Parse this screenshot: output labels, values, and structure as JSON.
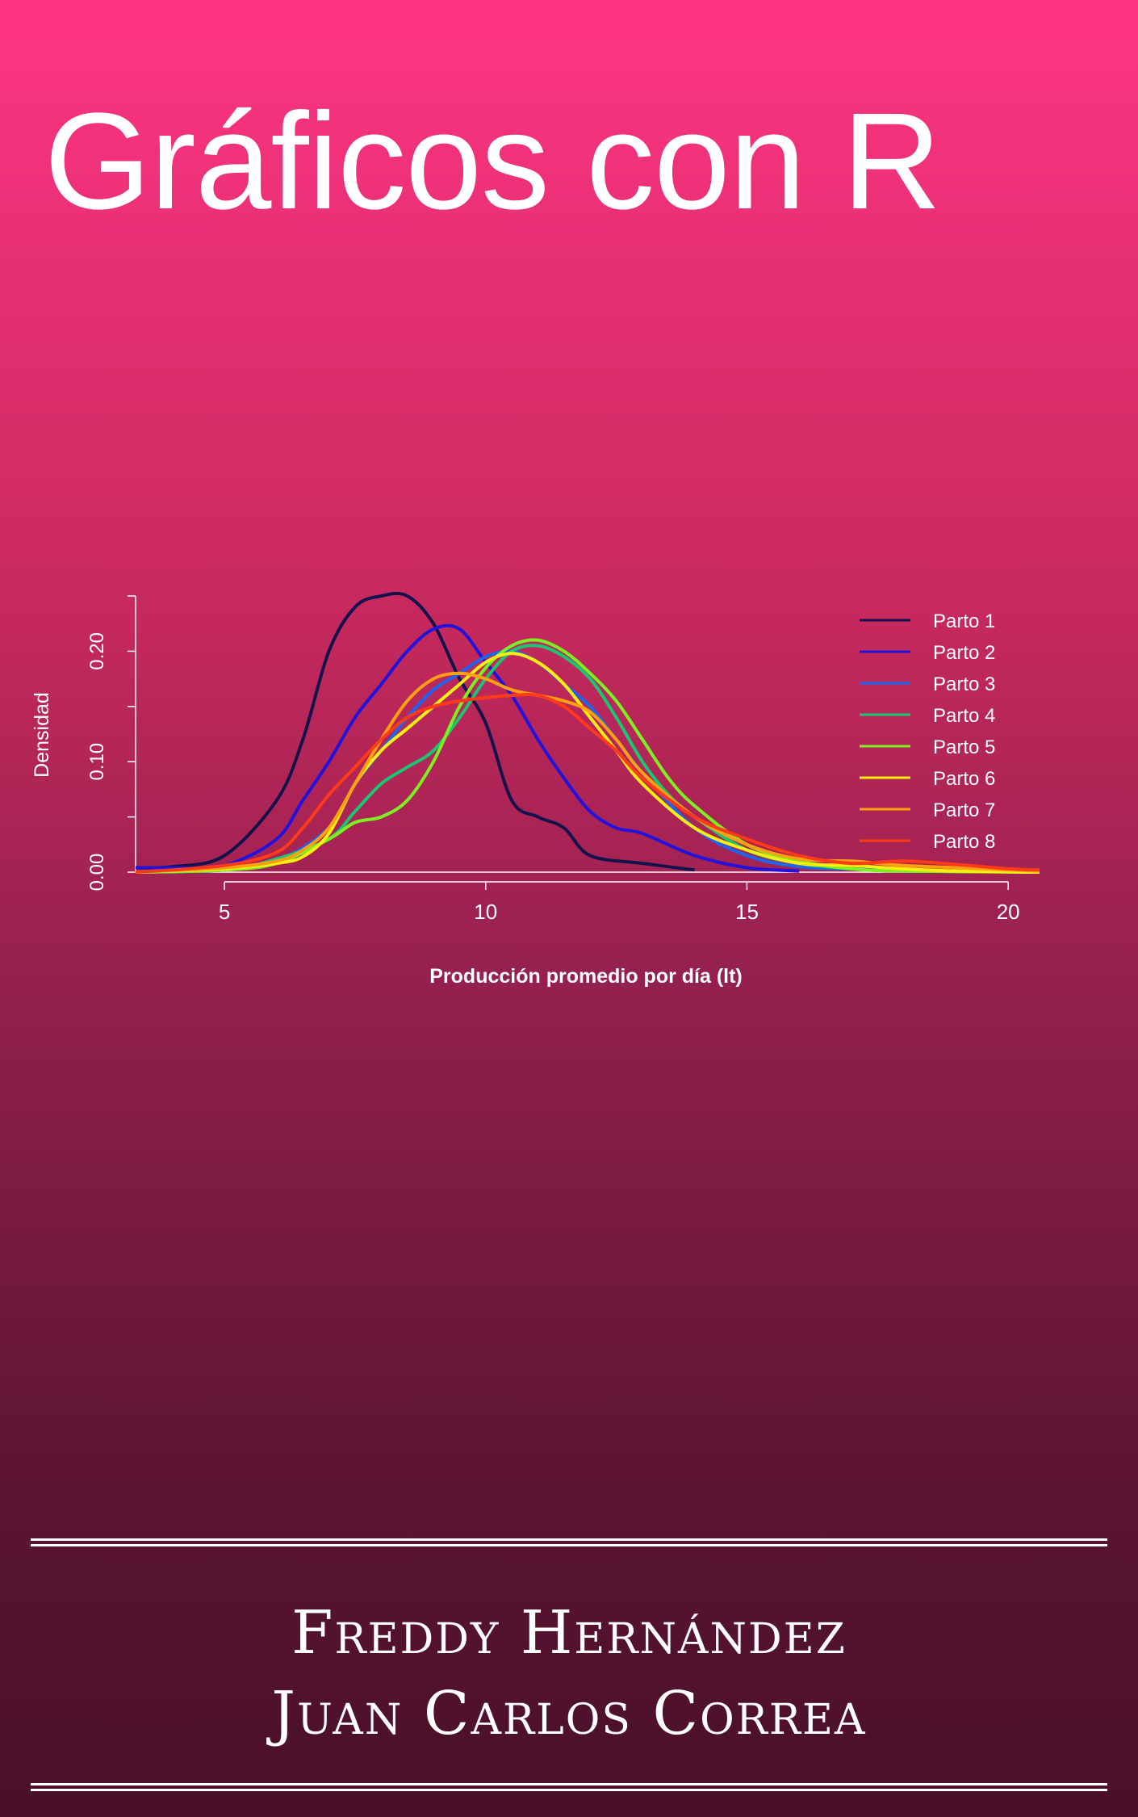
{
  "cover": {
    "title": "Gráficos con R",
    "authors": [
      "Freddy Hernández",
      "Juan Carlos Correa"
    ]
  },
  "chart_data": {
    "type": "line",
    "xlabel": "Producción promedio por día (lt)",
    "ylabel": "Densidad",
    "xlim": [
      3.3,
      20.6
    ],
    "ylim": [
      0,
      0.25
    ],
    "xticks": [
      "5",
      "10",
      "15",
      "20"
    ],
    "yticks": [
      "0.00",
      "0.10",
      "0.20"
    ],
    "legend_position": "top-right",
    "series": [
      {
        "name": "Parto 1",
        "color": "#14124a",
        "points": [
          [
            3.3,
            0.004
          ],
          [
            4,
            0.005
          ],
          [
            5,
            0.015
          ],
          [
            6,
            0.065
          ],
          [
            6.5,
            0.12
          ],
          [
            7,
            0.2
          ],
          [
            7.5,
            0.24
          ],
          [
            8,
            0.25
          ],
          [
            8.5,
            0.25
          ],
          [
            9,
            0.225
          ],
          [
            9.5,
            0.175
          ],
          [
            10,
            0.135
          ],
          [
            10.5,
            0.065
          ],
          [
            11,
            0.05
          ],
          [
            11.5,
            0.04
          ],
          [
            12,
            0.015
          ],
          [
            13,
            0.008
          ],
          [
            14,
            0.002
          ]
        ]
      },
      {
        "name": "Parto 2",
        "color": "#2212dc",
        "points": [
          [
            3.3,
            0.004
          ],
          [
            4,
            0.004
          ],
          [
            5,
            0.006
          ],
          [
            6,
            0.03
          ],
          [
            6.5,
            0.065
          ],
          [
            7,
            0.1
          ],
          [
            7.5,
            0.14
          ],
          [
            8,
            0.17
          ],
          [
            8.5,
            0.2
          ],
          [
            9,
            0.22
          ],
          [
            9.5,
            0.22
          ],
          [
            10,
            0.19
          ],
          [
            10.5,
            0.16
          ],
          [
            11,
            0.12
          ],
          [
            11.5,
            0.085
          ],
          [
            12,
            0.055
          ],
          [
            12.5,
            0.04
          ],
          [
            13,
            0.035
          ],
          [
            14,
            0.015
          ],
          [
            15,
            0.004
          ],
          [
            16,
            0.001
          ]
        ]
      },
      {
        "name": "Parto 3",
        "color": "#1a66f0",
        "points": [
          [
            3.3,
            0
          ],
          [
            5,
            0.002
          ],
          [
            6,
            0.01
          ],
          [
            7,
            0.04
          ],
          [
            7.5,
            0.08
          ],
          [
            8,
            0.11
          ],
          [
            8.5,
            0.14
          ],
          [
            9,
            0.165
          ],
          [
            9.5,
            0.18
          ],
          [
            10,
            0.195
          ],
          [
            10.5,
            0.2
          ],
          [
            11,
            0.19
          ],
          [
            11.5,
            0.17
          ],
          [
            12,
            0.15
          ],
          [
            12.5,
            0.12
          ],
          [
            13,
            0.09
          ],
          [
            14,
            0.04
          ],
          [
            15,
            0.015
          ],
          [
            16,
            0.005
          ],
          [
            17,
            0.003
          ],
          [
            18,
            0.002
          ],
          [
            19,
            0.001
          ],
          [
            20.6,
            0
          ]
        ]
      },
      {
        "name": "Parto 4",
        "color": "#18c870",
        "points": [
          [
            3.3,
            0
          ],
          [
            5,
            0.002
          ],
          [
            6,
            0.012
          ],
          [
            7,
            0.03
          ],
          [
            7.5,
            0.055
          ],
          [
            8,
            0.08
          ],
          [
            8.5,
            0.095
          ],
          [
            9,
            0.11
          ],
          [
            9.5,
            0.14
          ],
          [
            10,
            0.175
          ],
          [
            10.5,
            0.2
          ],
          [
            11,
            0.205
          ],
          [
            11.5,
            0.195
          ],
          [
            12,
            0.175
          ],
          [
            12.5,
            0.14
          ],
          [
            13,
            0.1
          ],
          [
            13.5,
            0.07
          ],
          [
            14,
            0.05
          ],
          [
            15,
            0.02
          ],
          [
            16,
            0.008
          ],
          [
            17,
            0.003
          ],
          [
            18,
            0.001
          ],
          [
            20.6,
            0
          ]
        ]
      },
      {
        "name": "Parto 5",
        "color": "#7cf020",
        "points": [
          [
            3.3,
            0
          ],
          [
            5,
            0.002
          ],
          [
            6,
            0.008
          ],
          [
            7,
            0.03
          ],
          [
            7.5,
            0.045
          ],
          [
            8,
            0.05
          ],
          [
            8.5,
            0.065
          ],
          [
            9,
            0.1
          ],
          [
            9.5,
            0.15
          ],
          [
            10,
            0.185
          ],
          [
            10.5,
            0.205
          ],
          [
            11,
            0.21
          ],
          [
            11.5,
            0.2
          ],
          [
            12,
            0.18
          ],
          [
            12.5,
            0.155
          ],
          [
            13,
            0.12
          ],
          [
            13.5,
            0.085
          ],
          [
            14,
            0.06
          ],
          [
            15,
            0.025
          ],
          [
            16,
            0.01
          ],
          [
            17,
            0.003
          ],
          [
            18,
            0.001
          ],
          [
            20.6,
            0
          ]
        ]
      },
      {
        "name": "Parto 6",
        "color": "#f8ee10",
        "points": [
          [
            3.3,
            0
          ],
          [
            5,
            0.003
          ],
          [
            6,
            0.008
          ],
          [
            6.5,
            0.014
          ],
          [
            7,
            0.035
          ],
          [
            7.5,
            0.08
          ],
          [
            8,
            0.11
          ],
          [
            8.5,
            0.13
          ],
          [
            9,
            0.15
          ],
          [
            9.5,
            0.17
          ],
          [
            10,
            0.19
          ],
          [
            10.5,
            0.198
          ],
          [
            11,
            0.19
          ],
          [
            11.5,
            0.17
          ],
          [
            12,
            0.14
          ],
          [
            12.5,
            0.11
          ],
          [
            13,
            0.08
          ],
          [
            14,
            0.04
          ],
          [
            15,
            0.02
          ],
          [
            16,
            0.008
          ],
          [
            17,
            0.006
          ],
          [
            18,
            0.003
          ],
          [
            19,
            0.001
          ],
          [
            20.6,
            0
          ]
        ]
      },
      {
        "name": "Parto 7",
        "color": "#ffa010",
        "points": [
          [
            3.3,
            0
          ],
          [
            5,
            0.004
          ],
          [
            6,
            0.01
          ],
          [
            6.5,
            0.02
          ],
          [
            7,
            0.04
          ],
          [
            7.5,
            0.08
          ],
          [
            8,
            0.12
          ],
          [
            8.5,
            0.155
          ],
          [
            9,
            0.175
          ],
          [
            9.5,
            0.18
          ],
          [
            10,
            0.175
          ],
          [
            10.5,
            0.165
          ],
          [
            11,
            0.16
          ],
          [
            11.5,
            0.155
          ],
          [
            12,
            0.145
          ],
          [
            12.5,
            0.12
          ],
          [
            13,
            0.09
          ],
          [
            14,
            0.05
          ],
          [
            15,
            0.025
          ],
          [
            16,
            0.012
          ],
          [
            17,
            0.01
          ],
          [
            17.5,
            0.008
          ],
          [
            18,
            0.006
          ],
          [
            19,
            0.004
          ],
          [
            20,
            0.002
          ],
          [
            20.6,
            0.001
          ]
        ]
      },
      {
        "name": "Parto 8",
        "color": "#ff3a18",
        "points": [
          [
            3.3,
            0
          ],
          [
            5,
            0.006
          ],
          [
            6,
            0.018
          ],
          [
            6.5,
            0.04
          ],
          [
            7,
            0.07
          ],
          [
            7.5,
            0.095
          ],
          [
            8,
            0.12
          ],
          [
            8.5,
            0.14
          ],
          [
            9,
            0.15
          ],
          [
            9.5,
            0.155
          ],
          [
            10,
            0.158
          ],
          [
            10.5,
            0.16
          ],
          [
            11,
            0.16
          ],
          [
            11.5,
            0.15
          ],
          [
            12,
            0.13
          ],
          [
            12.5,
            0.11
          ],
          [
            13,
            0.085
          ],
          [
            14,
            0.05
          ],
          [
            15,
            0.03
          ],
          [
            16,
            0.015
          ],
          [
            17,
            0.008
          ],
          [
            18,
            0.01
          ],
          [
            19,
            0.007
          ],
          [
            20,
            0.003
          ],
          [
            20.6,
            0.002
          ]
        ]
      }
    ]
  }
}
